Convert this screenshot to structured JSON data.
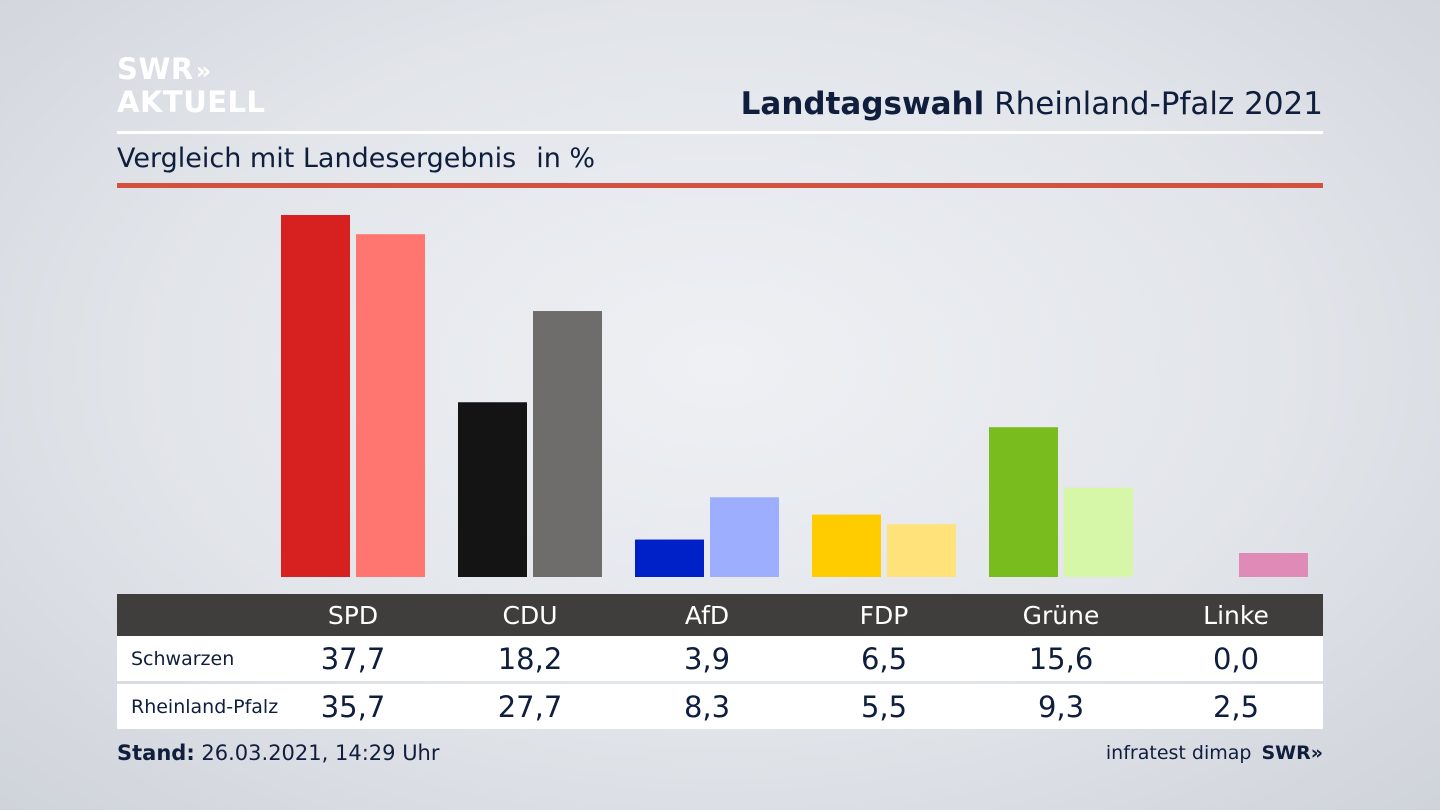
{
  "logo": {
    "line1": "SWR",
    "line1_chevrons": "»",
    "line2": "AKTUELL"
  },
  "header": {
    "title_bold": "Landtagswahl",
    "title_rest": "Rheinland-Pfalz 2021",
    "subtitle": "Vergleich mit Landesergebnis",
    "unit": "in %"
  },
  "chart_data": {
    "type": "bar",
    "title": "Vergleich mit Landesergebnis",
    "ylabel": "in %",
    "categories": [
      "SPD",
      "CDU",
      "AfD",
      "FDP",
      "Grüne",
      "Linke"
    ],
    "series": [
      {
        "name": "Schwarzen",
        "values": [
          37.7,
          18.2,
          3.9,
          6.5,
          15.6,
          0.0
        ],
        "colors": [
          "#d72020",
          "#141414",
          "#0021c8",
          "#ffcc00",
          "#78bc1e",
          "#e08ab8"
        ]
      },
      {
        "name": "Rheinland-Pfalz",
        "values": [
          35.7,
          27.7,
          8.3,
          5.5,
          9.3,
          2.5
        ],
        "colors": [
          "#ff7570",
          "#6e6d6b",
          "#9daeff",
          "#ffe27a",
          "#d6f6a8",
          "#e08ab8"
        ]
      }
    ],
    "value_labels": [
      [
        "37,7",
        "18,2",
        "3,9",
        "6,5",
        "15,6",
        "0,0"
      ],
      [
        "35,7",
        "27,7",
        "8,3",
        "5,5",
        "9,3",
        "2,5"
      ]
    ],
    "ylim": [
      0,
      38
    ],
    "grid": false
  },
  "footer": {
    "stand_label": "Stand:",
    "stand_value": "26.03.2021, 14:29 Uhr",
    "source": "infratest dimap",
    "brand": "SWR»"
  }
}
